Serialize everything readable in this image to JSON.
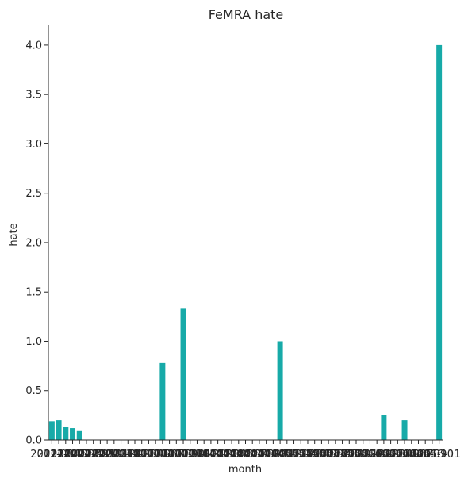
{
  "chart_data": {
    "type": "bar",
    "title": "FeMRA hate",
    "xlabel": "month",
    "ylabel": "hate",
    "ylim": [
      0,
      4.2
    ],
    "yticks": [
      "0.0",
      "0.5",
      "1.0",
      "1.5",
      "2.0",
      "2.5",
      "3.0",
      "3.5",
      "4.0"
    ],
    "ytick_values": [
      0,
      0.5,
      1.0,
      1.5,
      2.0,
      2.5,
      3.0,
      3.5,
      4.0
    ],
    "categories": [
      "2012-03",
      "2012-04",
      "2012-05",
      "2012-06",
      "2012-07",
      "2012-08",
      "2012-09",
      "2012-10",
      "2012-11",
      "2012-12",
      "2013-01",
      "2013-02",
      "2013-03",
      "2013-04",
      "2013-05",
      "2013-06",
      "2013-07",
      "2013-08",
      "2013-09",
      "2013-10",
      "2013-11",
      "2013-12",
      "2014-01",
      "2014-02",
      "2014-03",
      "2014-04",
      "2014-05",
      "2014-06",
      "2014-07",
      "2014-08",
      "2014-09",
      "2014-10",
      "2014-11",
      "2014-12",
      "2015-01",
      "2015-02",
      "2015-03",
      "2015-04",
      "2015-05",
      "2015-06",
      "2015-07",
      "2015-08",
      "2015-09",
      "2015-10",
      "2015-11",
      "2015-12",
      "2016-01",
      "2016-02",
      "2016-03",
      "2016-04",
      "2016-05",
      "2016-06",
      "2016-07",
      "2016-08",
      "2016-09",
      "2016-10",
      "2016-11"
    ],
    "values": [
      0.19,
      0.2,
      0.13,
      0.12,
      0.09,
      0,
      0,
      0,
      0,
      0,
      0,
      0,
      0,
      0,
      0,
      0,
      0.78,
      0,
      0,
      1.33,
      0,
      0,
      0,
      0,
      0,
      0,
      0,
      0,
      0,
      0,
      0,
      0,
      0,
      1.0,
      0,
      0,
      0,
      0,
      0,
      0,
      0,
      0,
      0,
      0,
      0,
      0,
      0,
      0,
      0.25,
      0,
      0,
      0.2,
      0,
      0,
      0,
      0,
      4.0
    ],
    "bar_color": "#17AAA8",
    "grid": false,
    "legend": "none"
  }
}
